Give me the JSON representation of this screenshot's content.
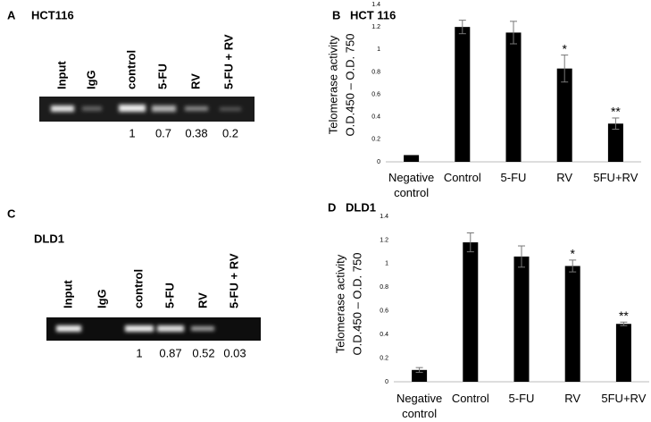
{
  "gels": [
    {
      "panel": "A",
      "title": "HCT116",
      "lanes": [
        "Input",
        "IgG",
        "control",
        "5-FU",
        "RV",
        "5-FU + RV"
      ],
      "quantification": [
        1,
        0.7,
        0.38,
        0.2
      ]
    },
    {
      "panel": "C",
      "title": "DLD1",
      "lanes": [
        "Input",
        "IgG",
        "control",
        "5-FU",
        "RV",
        "5-FU + RV"
      ],
      "quantification": [
        1,
        0.87,
        0.52,
        0.03
      ]
    }
  ],
  "chart_data": [
    {
      "type": "bar",
      "panel": "B",
      "title": "HCT 116",
      "ylabel": [
        "Telomerase activity",
        "O.D.450 – O.D. 750"
      ],
      "categories": [
        "Negative control",
        "Control",
        "5-FU",
        "RV",
        "5FU+RV"
      ],
      "values": [
        0.06,
        1.2,
        1.15,
        0.83,
        0.34
      ],
      "errors": [
        0,
        0.06,
        0.1,
        0.12,
        0.05
      ],
      "annotations": [
        {
          "category": "RV",
          "text": "*"
        },
        {
          "category": "5FU+RV",
          "text": "**"
        }
      ],
      "color": "#000000",
      "error_color": "#777777",
      "ylim": [
        0,
        1.4
      ],
      "yticks": [
        0,
        0.2,
        0.4,
        0.6,
        0.8,
        1,
        1.2,
        1.4
      ],
      "grid": false
    },
    {
      "type": "bar",
      "panel": "D",
      "title": "DLD1",
      "ylabel": [
        "Telomerase activity",
        "O.D.450 – O.D. 750"
      ],
      "categories": [
        "Negative control",
        "Control",
        "5-FU",
        "RV",
        "5FU+RV"
      ],
      "values": [
        0.1,
        1.18,
        1.06,
        0.98,
        0.49
      ],
      "errors": [
        0.02,
        0.08,
        0.09,
        0.05,
        0.015
      ],
      "annotations": [
        {
          "category": "RV",
          "text": "*"
        },
        {
          "category": "5FU+RV",
          "text": "**"
        }
      ],
      "color": "#000000",
      "error_color": "#777777",
      "ylim": [
        0,
        1.4
      ],
      "yticks": [
        0,
        0.2,
        0.4,
        0.6,
        0.8,
        1,
        1.2,
        1.4
      ],
      "grid": false
    }
  ]
}
